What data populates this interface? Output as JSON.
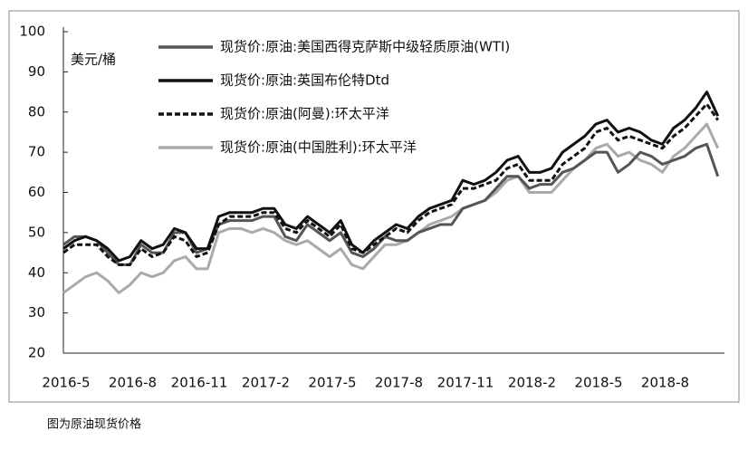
{
  "chart_data": {
    "type": "line",
    "ylabel": "美元/桶",
    "caption": "图为原油现货价格",
    "categories": [
      "2016-5",
      null,
      null,
      null,
      null,
      null,
      "2016-8",
      null,
      null,
      null,
      null,
      null,
      "2016-11",
      null,
      null,
      null,
      null,
      null,
      "2017-2",
      null,
      null,
      null,
      null,
      null,
      "2017-5",
      null,
      null,
      null,
      null,
      null,
      "2017-8",
      null,
      null,
      null,
      null,
      null,
      "2017-11",
      null,
      null,
      null,
      null,
      null,
      "2018-2",
      null,
      null,
      null,
      null,
      null,
      "2018-5",
      null,
      null,
      null,
      null,
      null,
      "2018-8",
      null,
      null,
      null,
      null,
      null
    ],
    "ylim": [
      20,
      100
    ],
    "yticks": [
      20,
      30,
      40,
      50,
      60,
      70,
      80,
      90,
      100
    ],
    "legend": "upper-left",
    "series": [
      {
        "name": "现货价:原油:美国西得克萨斯中级轻质原油(WTI)",
        "color": "#555555",
        "dash": "solid",
        "values": [
          47,
          49,
          49,
          48,
          45,
          42,
          42,
          47,
          45,
          45,
          50,
          50,
          45,
          46,
          52,
          53,
          53,
          53,
          54,
          54,
          49,
          48,
          52,
          50,
          48,
          50,
          45,
          44,
          46,
          49,
          48,
          48,
          50,
          51,
          52,
          52,
          56,
          57,
          58,
          61,
          64,
          64,
          61,
          62,
          62,
          65,
          66,
          68,
          70,
          70,
          65,
          67,
          70,
          69,
          67,
          68,
          69,
          71,
          72,
          64
        ]
      },
      {
        "name": "现货价:原油:英国布伦特Dtd",
        "color": "#111111",
        "dash": "solid",
        "values": [
          46,
          48,
          49,
          48,
          46,
          43,
          44,
          48,
          46,
          47,
          51,
          50,
          46,
          46,
          54,
          55,
          55,
          55,
          56,
          56,
          52,
          51,
          54,
          52,
          50,
          53,
          47,
          45,
          48,
          50,
          52,
          51,
          54,
          56,
          57,
          58,
          63,
          62,
          63,
          65,
          68,
          69,
          65,
          65,
          66,
          70,
          72,
          74,
          77,
          78,
          75,
          76,
          75,
          73,
          72,
          76,
          78,
          81,
          85,
          79
        ]
      },
      {
        "name": "现货价:原油(阿曼):环太平洋",
        "color": "#111111",
        "dash": "dashed",
        "values": [
          45,
          47,
          47,
          47,
          44,
          42,
          42,
          46,
          44,
          45,
          49,
          48,
          44,
          45,
          52,
          54,
          54,
          54,
          55,
          55,
          51,
          50,
          53,
          51,
          49,
          52,
          46,
          45,
          47,
          49,
          51,
          50,
          53,
          55,
          56,
          57,
          61,
          61,
          62,
          63,
          66,
          67,
          63,
          63,
          63,
          67,
          69,
          71,
          75,
          76,
          73,
          74,
          73,
          72,
          71,
          74,
          76,
          79,
          82,
          78
        ]
      },
      {
        "name": "现货价:原油(中国胜利):环太平洋",
        "color": "#aaaaaa",
        "dash": "solid",
        "values": [
          35,
          37,
          39,
          40,
          38,
          35,
          37,
          40,
          39,
          40,
          43,
          44,
          41,
          41,
          50,
          51,
          51,
          50,
          51,
          50,
          48,
          47,
          48,
          46,
          44,
          46,
          42,
          41,
          44,
          47,
          47,
          48,
          50,
          52,
          53,
          54,
          56,
          57,
          58,
          60,
          63,
          64,
          60,
          60,
          60,
          63,
          66,
          68,
          71,
          72,
          69,
          70,
          68,
          67,
          65,
          69,
          71,
          74,
          77,
          71
        ]
      }
    ]
  }
}
